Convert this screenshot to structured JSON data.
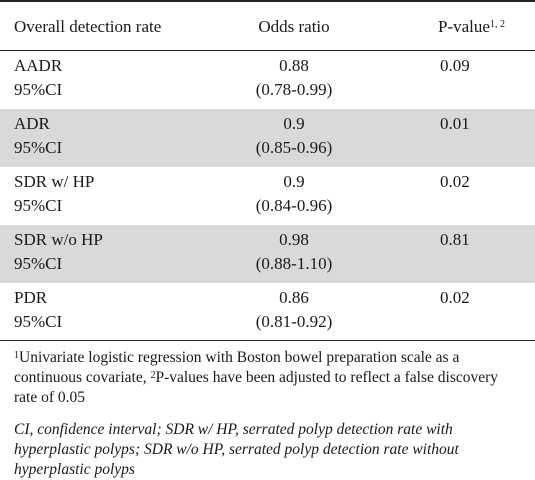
{
  "header": {
    "col1": "Overall detection rate",
    "col2": "Odds ratio",
    "col3": "P-value",
    "col3_sup": "1, 2"
  },
  "rows": [
    {
      "label": "AADR",
      "sublabel": "95%CI",
      "odds": "0.88",
      "ci": "(0.78-0.99)",
      "p": "0.09"
    },
    {
      "label": "ADR",
      "sublabel": "95%CI",
      "odds": "0.9",
      "ci": "(0.85-0.96)",
      "p": "0.01"
    },
    {
      "label": "SDR w/ HP",
      "sublabel": "95%CI",
      "odds": "0.9",
      "ci": "(0.84-0.96)",
      "p": "0.02"
    },
    {
      "label": "SDR w/o HP",
      "sublabel": "95%CI",
      "odds": "0.98",
      "ci": "(0.88-1.10)",
      "p": "0.81"
    },
    {
      "label": "PDR",
      "sublabel": "95%CI",
      "odds": "0.86",
      "ci": "(0.81-0.92)",
      "p": "0.02"
    }
  ],
  "footnotes": {
    "note1_sup1": "1",
    "note1_a": "Univariate logistic regression with Boston bowel preparation scale as a continuous covariate, ",
    "note1_sup2": "2",
    "note1_b": "P-values have been adjusted to reflect a false discovery rate of 0.05",
    "note2": "CI, confidence interval; SDR w/ HP, serrated polyp detection rate with hyperplastic polyps; SDR w/o HP, serrated polyp detection rate without hyperplastic polyps"
  },
  "colors": {
    "shade": "#d9d9d9",
    "rule": "#222222"
  }
}
